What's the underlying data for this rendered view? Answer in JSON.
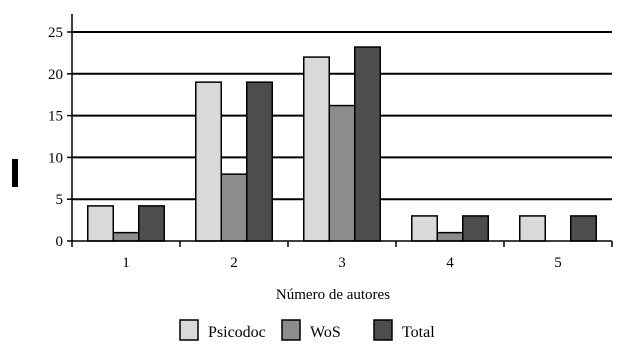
{
  "chart_data": {
    "type": "bar",
    "categories": [
      "1",
      "2",
      "3",
      "4",
      "5"
    ],
    "series": [
      {
        "name": "Psicodoc",
        "values": [
          4.2,
          19,
          22,
          3,
          3
        ],
        "color": "#d9d9d9"
      },
      {
        "name": "WoS",
        "values": [
          1,
          8,
          16.2,
          1,
          0
        ],
        "color": "#8c8c8c"
      },
      {
        "name": "Total",
        "values": [
          4.2,
          19,
          23.2,
          3,
          3
        ],
        "color": "#4d4d4d"
      }
    ],
    "xlabel": "Número de autores",
    "ylabel": "",
    "ylim": [
      0,
      25
    ],
    "yticks": [
      0,
      5,
      10,
      15,
      20,
      25
    ],
    "grid": true,
    "legend_position": "bottom"
  }
}
